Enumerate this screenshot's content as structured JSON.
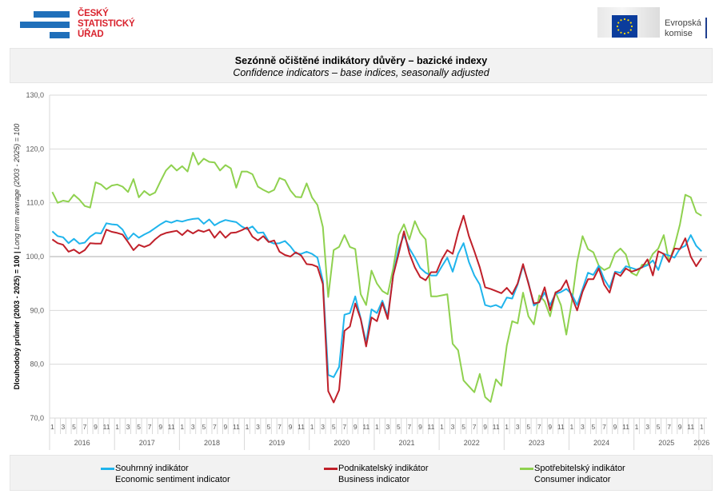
{
  "header": {
    "csu_logo": [
      "ČESKÝ",
      "STATISTICKÝ",
      "ÚŘAD"
    ],
    "ec_logo": [
      "Evropská",
      "komise"
    ]
  },
  "title": "Sezónně očištěné indikátory důvěry – bazické indexy",
  "subtitle": "Confidence indicators – base indices, seasonally adjusted",
  "chart_data": {
    "type": "line",
    "title": "Sezónně očištěné indikátory důvěry – bazické indexy",
    "subtitle": "Confidence indicators – base indices, seasonally adjusted",
    "ylabel_cz": "Dlouhodobý průměr (2003 - 2025) = 100 |",
    "ylabel_en": " Long term average (2003 - 2025) = 100",
    "ylim": [
      70,
      130
    ],
    "yticks": [
      "70,0",
      "80,0",
      "90,0",
      "100,0",
      "110,0",
      "120,0",
      "130,0"
    ],
    "x_start": "2016-01",
    "x_end": "2026-01",
    "month_ticks": [
      "1",
      "3",
      "5",
      "7",
      "9",
      "11"
    ],
    "years": [
      "2016",
      "2017",
      "2018",
      "2019",
      "2020",
      "2021",
      "2022",
      "2023",
      "2024",
      "2025",
      "2026"
    ],
    "grid": true,
    "legend_position": "bottom",
    "series": [
      {
        "name": "Souhrnný indikátor",
        "name_en": "Economic sentiment indicator",
        "color": "#1fb4ec",
        "values": [
          104.7,
          103.8,
          103.6,
          102.5,
          103.3,
          102.4,
          102.6,
          103.7,
          104.4,
          104.3,
          106.2,
          106.0,
          105.9,
          105.0,
          103.2,
          104.3,
          103.5,
          104.1,
          104.6,
          105.3,
          106.0,
          106.6,
          106.3,
          106.7,
          106.5,
          106.8,
          107.0,
          107.1,
          106.1,
          106.9,
          105.8,
          106.4,
          106.8,
          106.6,
          106.4,
          105.6,
          105.1,
          105.6,
          104.4,
          104.5,
          102.8,
          102.4,
          102.5,
          102.9,
          101.9,
          100.6,
          100.5,
          100.9,
          100.5,
          99.8,
          95.5,
          78.0,
          77.6,
          79.5,
          89.2,
          89.5,
          92.6,
          88.5,
          84.0,
          90.2,
          89.5,
          91.8,
          88.9,
          96.5,
          101.5,
          104.0,
          101.5,
          99.8,
          97.9,
          97.0,
          96.5,
          96.5,
          98.2,
          99.8,
          97.2,
          100.5,
          102.5,
          99.0,
          96.5,
          94.8,
          91.0,
          90.7,
          91.0,
          90.5,
          92.4,
          92.2,
          94.8,
          98.3,
          95.2,
          90.9,
          91.6,
          93.3,
          91.0,
          93.1,
          93.4,
          94.0,
          93.0,
          91.0,
          94.0,
          97.0,
          96.6,
          98.3,
          95.8,
          94.2,
          97.2,
          97.0,
          98.2,
          97.9,
          97.6,
          98.0,
          98.4,
          99.3,
          97.5,
          100.5,
          100.2,
          99.8,
          101.5,
          102.0,
          104.0,
          102.0,
          101.0
        ]
      },
      {
        "name": "Podnikatelský indikátor",
        "name_en": "Business indicator",
        "color": "#c0202a",
        "values": [
          103.2,
          102.5,
          102.2,
          100.9,
          101.3,
          100.6,
          101.2,
          102.5,
          102.4,
          102.4,
          105.0,
          104.6,
          104.4,
          104.1,
          102.7,
          101.2,
          102.2,
          101.8,
          102.2,
          103.2,
          104.0,
          104.4,
          104.6,
          104.8,
          104.0,
          104.9,
          104.3,
          104.9,
          104.6,
          105.0,
          103.5,
          104.7,
          103.5,
          104.4,
          104.5,
          104.9,
          105.4,
          103.7,
          103.0,
          103.8,
          102.7,
          103.0,
          100.9,
          100.3,
          100.0,
          100.8,
          100.2,
          98.6,
          98.5,
          98.1,
          94.9,
          75.0,
          72.9,
          75.2,
          86.2,
          87.0,
          91.3,
          88.4,
          83.3,
          88.7,
          88.0,
          91.4,
          88.4,
          96.5,
          100.5,
          104.7,
          100.6,
          98.0,
          96.2,
          95.6,
          97.1,
          97.1,
          99.5,
          101.2,
          100.5,
          104.5,
          107.6,
          103.8,
          101.0,
          98.0,
          94.3,
          94.0,
          93.6,
          93.2,
          94.2,
          93.0,
          95.0,
          98.6,
          95.0,
          91.3,
          91.5,
          94.3,
          90.0,
          93.3,
          93.9,
          95.6,
          92.5,
          90.0,
          93.5,
          95.8,
          95.8,
          97.8,
          94.8,
          93.3,
          97.0,
          96.4,
          97.8,
          97.2,
          97.5,
          98.0,
          99.5,
          96.5,
          101.0,
          100.5,
          99.0,
          101.5,
          101.4,
          103.4,
          100.0,
          98.2,
          99.7
        ]
      },
      {
        "name": "Spotřebitelský indikátor",
        "name_en": "Consumer indicator",
        "color": "#8fd14f",
        "values": [
          112.0,
          110.0,
          110.4,
          110.2,
          111.5,
          110.6,
          109.4,
          109.1,
          113.8,
          113.4,
          112.5,
          113.2,
          113.4,
          113.0,
          112.0,
          114.4,
          111.0,
          112.2,
          111.4,
          111.9,
          114.0,
          116.0,
          117.0,
          116.0,
          116.8,
          115.8,
          119.3,
          117.1,
          118.2,
          117.6,
          117.5,
          116.0,
          117.0,
          116.4,
          112.8,
          115.8,
          115.8,
          115.3,
          113.0,
          112.4,
          111.9,
          112.4,
          114.6,
          114.2,
          112.3,
          111.1,
          111.0,
          113.6,
          111.0,
          109.6,
          105.5,
          92.5,
          101.2,
          101.8,
          104.0,
          101.8,
          101.4,
          93.0,
          91.0,
          97.4,
          95.0,
          93.6,
          93.0,
          97.8,
          104.0,
          106.0,
          103.2,
          106.6,
          104.4,
          103.2,
          92.6,
          92.6,
          92.8,
          93.0,
          83.8,
          82.6,
          77.0,
          75.9,
          74.8,
          78.2,
          73.9,
          73.0,
          77.2,
          76.0,
          83.5,
          88.0,
          87.6,
          93.3,
          88.9,
          87.4,
          92.8,
          91.7,
          88.9,
          93.4,
          91.0,
          85.5,
          91.5,
          99.0,
          103.8,
          101.4,
          100.8,
          98.3,
          97.5,
          98.0,
          100.6,
          101.5,
          100.4,
          97.0,
          96.5,
          98.5,
          98.5,
          100.5,
          101.5,
          104.0,
          99.0,
          102.0,
          106.0,
          111.5,
          111.0,
          108.2,
          107.6
        ]
      }
    ]
  }
}
